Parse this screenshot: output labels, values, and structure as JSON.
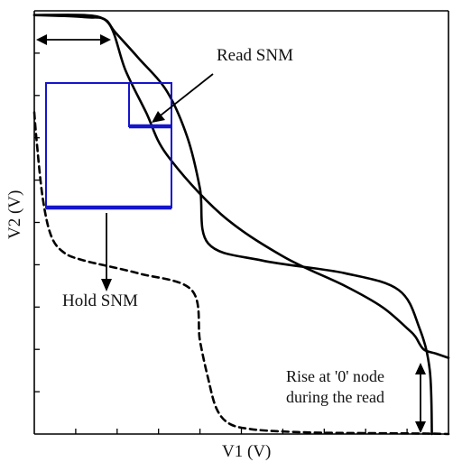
{
  "chart_data": {
    "type": "line",
    "xlabel": "V1 (V)",
    "ylabel": "V2 (V)",
    "xlim": [
      0,
      1
    ],
    "ylim": [
      0,
      1
    ],
    "grid": false,
    "series": [
      {
        "style": "solid",
        "x": [
          0.0,
          0.12,
          0.18,
          0.22,
          0.27,
          0.32,
          0.45,
          0.6,
          0.75,
          0.84,
          0.9,
          0.92,
          0.94,
          0.97,
          1.0
        ],
        "y": [
          0.99,
          0.985,
          0.97,
          0.86,
          0.76,
          0.66,
          0.52,
          0.42,
          0.35,
          0.3,
          0.25,
          0.23,
          0.2,
          0.19,
          0.18
        ]
      },
      {
        "style": "solid",
        "x": [
          0.0,
          0.12,
          0.17,
          0.195,
          0.25,
          0.32,
          0.37,
          0.4,
          0.42,
          0.55,
          0.75,
          0.88,
          0.93,
          0.955,
          0.96
        ],
        "y": [
          0.99,
          0.99,
          0.98,
          0.95,
          0.89,
          0.81,
          0.7,
          0.58,
          0.45,
          0.41,
          0.38,
          0.34,
          0.25,
          0.15,
          0.0
        ]
      },
      {
        "style": "dashed",
        "x": [
          0.0,
          0.005,
          0.02,
          0.04,
          0.07,
          0.12,
          0.25,
          0.38,
          0.4,
          0.42,
          0.44,
          0.47,
          0.52,
          0.6,
          0.7,
          0.82,
          0.95,
          1.0
        ],
        "y": [
          0.76,
          0.7,
          0.56,
          0.47,
          0.43,
          0.41,
          0.38,
          0.34,
          0.22,
          0.13,
          0.06,
          0.025,
          0.012,
          0.006,
          0.003,
          0.002,
          0.001,
          0.0
        ]
      }
    ],
    "annotations": [
      "Read SNM",
      "Hold SNM",
      "Rise at '0' node",
      "during the read"
    ]
  }
}
